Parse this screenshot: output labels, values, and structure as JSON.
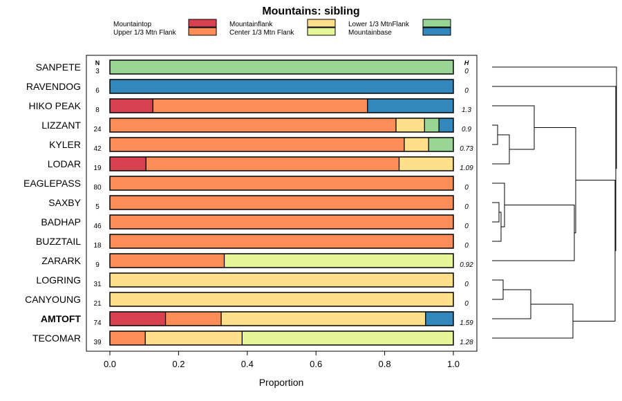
{
  "chart_data": {
    "type": "bar",
    "orientation": "horizontal",
    "stacked": true,
    "title": "Mountains: sibling",
    "xlabel": "Proportion",
    "xlim": [
      0,
      1
    ],
    "xticks": [
      "0.0",
      "0.2",
      "0.4",
      "0.6",
      "0.8",
      "1.0"
    ],
    "n_header": "N",
    "h_header": "H",
    "legend": [
      {
        "name": "Mountaintop",
        "color": "#d7404e"
      },
      {
        "name": "Upper 1/3 Mtn Flank",
        "color": "#fc8d59"
      },
      {
        "name": "Mountainflank",
        "color": "#fee08b"
      },
      {
        "name": "Center 1/3 Mtn Flank",
        "color": "#e6f598"
      },
      {
        "name": "Lower 1/3 MtnFlank",
        "color": "#99d594"
      },
      {
        "name": "Mountainbase",
        "color": "#3288bd"
      }
    ],
    "categories": [
      {
        "label": "SANPETE",
        "n": "3",
        "h": "0",
        "bold": false,
        "values": [
          0,
          0,
          0,
          0,
          1.0,
          0
        ]
      },
      {
        "label": "RAVENDOG",
        "n": "6",
        "h": "0",
        "bold": false,
        "values": [
          0,
          0,
          0,
          0,
          0,
          1.0
        ]
      },
      {
        "label": "HIKO PEAK",
        "n": "8",
        "h": "1.3",
        "bold": false,
        "values": [
          0.125,
          0.625,
          0,
          0,
          0,
          0.25
        ]
      },
      {
        "label": "LIZZANT",
        "n": "24",
        "h": "0.9",
        "bold": false,
        "values": [
          0,
          0.833,
          0.083,
          0,
          0.042,
          0.042
        ]
      },
      {
        "label": "KYLER",
        "n": "42",
        "h": "0.73",
        "bold": false,
        "values": [
          0,
          0.857,
          0.071,
          0,
          0.072,
          0
        ]
      },
      {
        "label": "LODAR",
        "n": "19",
        "h": "1.09",
        "bold": false,
        "values": [
          0.105,
          0.737,
          0.158,
          0,
          0,
          0
        ]
      },
      {
        "label": "EAGLEPASS",
        "n": "80",
        "h": "0",
        "bold": false,
        "values": [
          0,
          1.0,
          0,
          0,
          0,
          0
        ]
      },
      {
        "label": "SAXBY",
        "n": "5",
        "h": "0",
        "bold": false,
        "values": [
          0,
          1.0,
          0,
          0,
          0,
          0
        ]
      },
      {
        "label": "BADHAP",
        "n": "46",
        "h": "0",
        "bold": false,
        "values": [
          0,
          1.0,
          0,
          0,
          0,
          0
        ]
      },
      {
        "label": "BUZZTAIL",
        "n": "18",
        "h": "0",
        "bold": false,
        "values": [
          0,
          1.0,
          0,
          0,
          0,
          0
        ]
      },
      {
        "label": "ZARARK",
        "n": "9",
        "h": "0.92",
        "bold": false,
        "values": [
          0,
          0.333,
          0,
          0.667,
          0,
          0
        ]
      },
      {
        "label": "LOGRING",
        "n": "31",
        "h": "0",
        "bold": false,
        "values": [
          0,
          0,
          1.0,
          0,
          0,
          0
        ]
      },
      {
        "label": "CANYOUNG",
        "n": "21",
        "h": "0",
        "bold": false,
        "values": [
          0,
          0,
          1.0,
          0,
          0,
          0
        ]
      },
      {
        "label": "AMTOFT",
        "n": "74",
        "h": "1.59",
        "bold": true,
        "values": [
          0.162,
          0.162,
          0.595,
          0,
          0,
          0.081
        ]
      },
      {
        "label": "TECOMAR",
        "n": "39",
        "h": "1.28",
        "bold": false,
        "values": [
          0,
          0.103,
          0.282,
          0.615,
          0,
          0
        ]
      }
    ]
  }
}
